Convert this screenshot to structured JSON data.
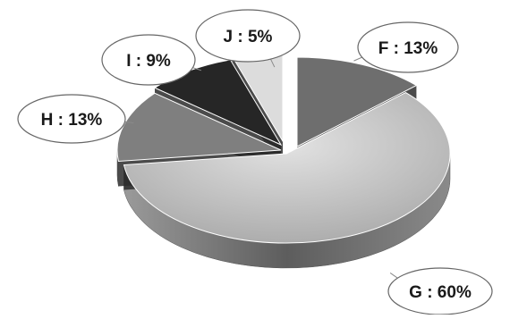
{
  "chart_data": {
    "type": "pie",
    "style": "3d-exploded",
    "title": "",
    "slices": [
      {
        "label": "F",
        "value": 13,
        "data_label": "F : 13%",
        "color": "#6e6e6e"
      },
      {
        "label": "G",
        "value": 60,
        "data_label": "G : 60%",
        "color": "#c4c4c4"
      },
      {
        "label": "H",
        "value": 13,
        "data_label": "H : 13%",
        "color": "#7f7f7f"
      },
      {
        "label": "I",
        "value": 9,
        "data_label": "I : 9%",
        "color": "#262626"
      },
      {
        "label": "J",
        "value": 5,
        "data_label": "J :  5%",
        "color": "#dcdcdc"
      }
    ],
    "legend": "none",
    "data_labels": "callout-ellipse"
  }
}
